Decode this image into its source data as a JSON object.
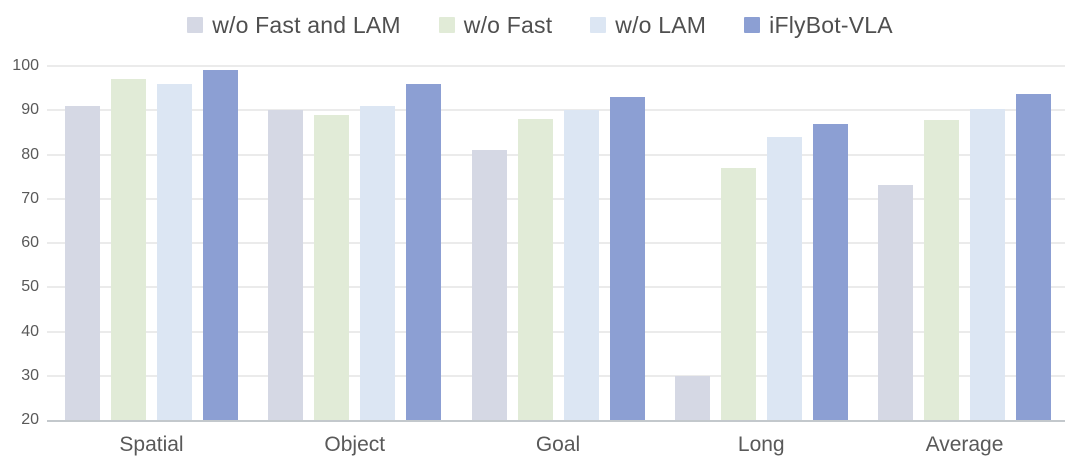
{
  "chart_data": {
    "type": "bar",
    "title": "",
    "categories": [
      "Spatial",
      "Object",
      "Goal",
      "Long",
      "Average"
    ],
    "series": [
      {
        "name": "w/o Fast and LAM",
        "color": "#d5d8e4",
        "values": [
          91,
          90,
          81,
          30,
          73
        ]
      },
      {
        "name": "w/o Fast",
        "color": "#e1ebd7",
        "values": [
          97,
          89,
          88,
          77,
          87.75
        ]
      },
      {
        "name": "w/o LAM",
        "color": "#dce6f3",
        "values": [
          96,
          91,
          90,
          84,
          90.25
        ]
      },
      {
        "name": "iFlyBot-VLA",
        "color": "#8c9fd3",
        "values": [
          99,
          96,
          93,
          87,
          93.75
        ]
      }
    ],
    "xlabel": "",
    "ylabel": "",
    "ylim": [
      20,
      100
    ],
    "ytick_step": 10,
    "ytick_labels": [
      "20",
      "30",
      "40",
      "50",
      "60",
      "70",
      "80",
      "90",
      "100"
    ],
    "grid": true,
    "legend_position": "top",
    "colors": {
      "axis_text": "#595959",
      "legend_text": "#4f4f4f",
      "gridline": "#d7d7d7",
      "baseline": "#c3c8cc",
      "background": "#ffffff"
    }
  }
}
